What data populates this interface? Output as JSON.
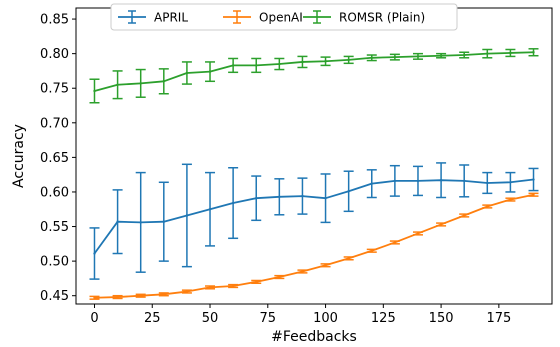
{
  "chart_data": {
    "type": "line",
    "xlabel": "#Feedbacks",
    "ylabel": "Accuracy",
    "xlim": [
      -8,
      198
    ],
    "ylim": [
      0.438,
      0.866
    ],
    "xticks": [
      0,
      25,
      50,
      75,
      100,
      125,
      150,
      175
    ],
    "yticks": [
      0.45,
      0.5,
      0.55,
      0.6,
      0.65,
      0.7,
      0.75,
      0.8,
      0.85
    ],
    "ytick_labels": [
      "0.45",
      "0.50",
      "0.55",
      "0.60",
      "0.65",
      "0.70",
      "0.75",
      "0.80",
      "0.85"
    ],
    "legend_position": "top-center",
    "grid": false,
    "series": [
      {
        "name": "APRIL",
        "color": "#1f77b4",
        "x": [
          0,
          10,
          20,
          30,
          40,
          50,
          60,
          70,
          80,
          90,
          100,
          110,
          120,
          130,
          140,
          150,
          160,
          170,
          180,
          190
        ],
        "y": [
          0.511,
          0.557,
          0.556,
          0.557,
          0.566,
          0.575,
          0.584,
          0.591,
          0.593,
          0.594,
          0.591,
          0.601,
          0.612,
          0.616,
          0.616,
          0.617,
          0.616,
          0.613,
          0.614,
          0.618
        ],
        "err": [
          0.037,
          0.046,
          0.072,
          0.057,
          0.074,
          0.053,
          0.051,
          0.032,
          0.026,
          0.026,
          0.035,
          0.029,
          0.02,
          0.022,
          0.021,
          0.025,
          0.023,
          0.015,
          0.014,
          0.016
        ]
      },
      {
        "name": "OpenAI",
        "color": "#ff7f0e",
        "x": [
          0,
          10,
          20,
          30,
          40,
          50,
          60,
          70,
          80,
          90,
          100,
          110,
          120,
          130,
          140,
          150,
          160,
          170,
          180,
          190
        ],
        "y": [
          0.447,
          0.448,
          0.45,
          0.452,
          0.456,
          0.462,
          0.464,
          0.47,
          0.477,
          0.485,
          0.494,
          0.504,
          0.515,
          0.527,
          0.54,
          0.553,
          0.566,
          0.579,
          0.589,
          0.596
        ],
        "err": [
          0.002,
          0.002,
          0.002,
          0.002,
          0.002,
          0.002,
          0.002,
          0.002,
          0.002,
          0.002,
          0.002,
          0.002,
          0.002,
          0.002,
          0.002,
          0.002,
          0.002,
          0.002,
          0.002,
          0.002
        ]
      },
      {
        "name": "ROMSR (Plain)",
        "color": "#2ca02c",
        "x": [
          0,
          10,
          20,
          30,
          40,
          50,
          60,
          70,
          80,
          90,
          100,
          110,
          120,
          130,
          140,
          150,
          160,
          170,
          180,
          190
        ],
        "y": [
          0.746,
          0.755,
          0.757,
          0.76,
          0.772,
          0.774,
          0.783,
          0.783,
          0.785,
          0.788,
          0.789,
          0.791,
          0.794,
          0.795,
          0.796,
          0.797,
          0.798,
          0.8,
          0.801,
          0.802
        ],
        "err": [
          0.017,
          0.02,
          0.02,
          0.018,
          0.016,
          0.014,
          0.01,
          0.01,
          0.008,
          0.008,
          0.006,
          0.005,
          0.004,
          0.004,
          0.004,
          0.003,
          0.004,
          0.006,
          0.005,
          0.005
        ]
      }
    ]
  }
}
